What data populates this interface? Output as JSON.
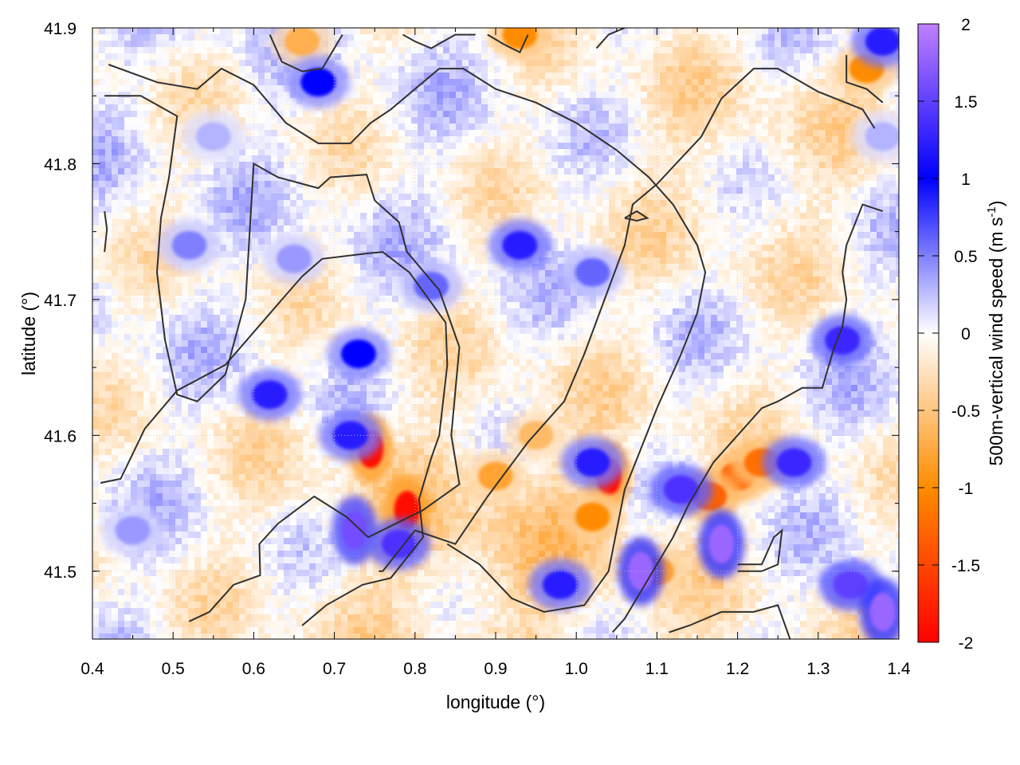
{
  "chart_data": {
    "type": "heatmap",
    "title": "",
    "xlabel": "longitude (°)",
    "ylabel": "latitude (°)",
    "colorbar_label": "500m-vertical wind speed (m s⁻¹)",
    "colorbar_label_parts": {
      "base": "500m-vertical wind speed (m s",
      "sup": "-1",
      "tail": ")"
    },
    "xlim": [
      0.4,
      1.4
    ],
    "ylim": [
      41.45,
      41.9
    ],
    "clim": [
      -2,
      2
    ],
    "x_ticks": [
      "0.4",
      "0.5",
      "0.6",
      "0.7",
      "0.8",
      "0.9",
      "1.0",
      "1.1",
      "1.2",
      "1.3",
      "1.4"
    ],
    "y_ticks": [
      "41.5",
      "41.6",
      "41.7",
      "41.8",
      "41.9"
    ],
    "colorbar_ticks": [
      "2",
      "1.5",
      "1",
      "0.5",
      "0",
      "-0.5",
      "-1",
      "-1.5",
      "-2"
    ],
    "colormap": [
      "#ff0000",
      "#ff8c00",
      "#ffffff",
      "#0000ff",
      "#c080ff"
    ],
    "grid": true,
    "features": [
      {
        "kind": "updraft",
        "lon": 0.745,
        "lat": 41.59,
        "value": -1.9
      },
      {
        "kind": "updraft",
        "lon": 0.79,
        "lat": 41.545,
        "value": -1.9
      },
      {
        "kind": "updraft",
        "lon": 1.04,
        "lat": 41.57,
        "value": -1.9
      },
      {
        "kind": "updraft",
        "lon": 1.2,
        "lat": 41.57,
        "value": -1.3
      },
      {
        "kind": "updraft",
        "lon": 1.165,
        "lat": 41.555,
        "value": -1.3
      },
      {
        "kind": "updraft",
        "lon": 1.23,
        "lat": 41.58,
        "value": -1.2
      },
      {
        "kind": "updraft",
        "lon": 1.02,
        "lat": 41.54,
        "value": -1.0
      },
      {
        "kind": "updraft",
        "lon": 0.9,
        "lat": 41.57,
        "value": -0.8
      },
      {
        "kind": "updraft",
        "lon": 0.95,
        "lat": 41.6,
        "value": -0.6
      },
      {
        "kind": "updraft",
        "lon": 0.93,
        "lat": 41.895,
        "value": -1.0
      },
      {
        "kind": "updraft",
        "lon": 0.66,
        "lat": 41.89,
        "value": -0.7
      },
      {
        "kind": "updraft",
        "lon": 1.36,
        "lat": 41.87,
        "value": -1.0
      },
      {
        "kind": "updraft",
        "lon": 1.1,
        "lat": 41.5,
        "value": -0.8
      },
      {
        "kind": "downdraft",
        "lon": 0.72,
        "lat": 41.6,
        "value": 1.2
      },
      {
        "kind": "downdraft",
        "lon": 0.725,
        "lat": 41.53,
        "value": 1.6
      },
      {
        "kind": "downdraft",
        "lon": 0.78,
        "lat": 41.52,
        "value": 1.4
      },
      {
        "kind": "downdraft",
        "lon": 0.73,
        "lat": 41.66,
        "value": 1.0
      },
      {
        "kind": "downdraft",
        "lon": 1.02,
        "lat": 41.58,
        "value": 1.2
      },
      {
        "kind": "downdraft",
        "lon": 1.08,
        "lat": 41.5,
        "value": 1.8
      },
      {
        "kind": "downdraft",
        "lon": 1.13,
        "lat": 41.56,
        "value": 1.4
      },
      {
        "kind": "downdraft",
        "lon": 1.18,
        "lat": 41.52,
        "value": 1.8
      },
      {
        "kind": "downdraft",
        "lon": 0.98,
        "lat": 41.49,
        "value": 1.2
      },
      {
        "kind": "downdraft",
        "lon": 0.52,
        "lat": 41.74,
        "value": 0.5
      },
      {
        "kind": "downdraft",
        "lon": 0.65,
        "lat": 41.73,
        "value": 0.4
      },
      {
        "kind": "downdraft",
        "lon": 0.93,
        "lat": 41.74,
        "value": 1.2
      },
      {
        "kind": "downdraft",
        "lon": 0.82,
        "lat": 41.71,
        "value": 0.6
      },
      {
        "kind": "downdraft",
        "lon": 1.02,
        "lat": 41.72,
        "value": 0.6
      },
      {
        "kind": "downdraft",
        "lon": 1.33,
        "lat": 41.67,
        "value": 1.3
      },
      {
        "kind": "downdraft",
        "lon": 1.27,
        "lat": 41.58,
        "value": 1.3
      },
      {
        "kind": "downdraft",
        "lon": 1.34,
        "lat": 41.49,
        "value": 1.5
      },
      {
        "kind": "downdraft",
        "lon": 1.38,
        "lat": 41.47,
        "value": 1.8
      },
      {
        "kind": "downdraft",
        "lon": 0.62,
        "lat": 41.63,
        "value": 1.2
      },
      {
        "kind": "downdraft",
        "lon": 0.68,
        "lat": 41.86,
        "value": 1.0
      },
      {
        "kind": "downdraft",
        "lon": 1.38,
        "lat": 41.89,
        "value": 1.2
      },
      {
        "kind": "downdraft",
        "lon": 0.45,
        "lat": 41.53,
        "value": 0.4
      },
      {
        "kind": "downdraft",
        "lon": 1.38,
        "lat": 41.82,
        "value": 0.3
      },
      {
        "kind": "downdraft",
        "lon": 0.55,
        "lat": 41.82,
        "value": 0.3
      }
    ],
    "contours": [
      {
        "name": "outer-west",
        "points": [
          [
            0.41,
            41.565
          ],
          [
            0.435,
            41.568
          ],
          [
            0.465,
            41.605
          ],
          [
            0.505,
            41.633
          ],
          [
            0.565,
            41.652
          ],
          [
            0.635,
            41.7
          ],
          [
            0.66,
            41.717
          ],
          [
            0.685,
            41.73
          ],
          [
            0.742,
            41.734
          ],
          [
            0.76,
            41.735
          ],
          [
            0.793,
            41.72
          ],
          [
            0.838,
            41.683
          ],
          [
            0.84,
            41.652
          ],
          [
            0.83,
            41.6
          ],
          [
            0.82,
            41.583
          ],
          [
            0.805,
            41.553
          ],
          [
            0.81,
            41.525
          ],
          [
            0.77,
            41.495
          ],
          [
            0.735,
            41.49
          ],
          [
            0.69,
            41.475
          ],
          [
            0.66,
            41.46
          ]
        ]
      },
      {
        "name": "inner-west",
        "points": [
          [
            0.52,
            41.463
          ],
          [
            0.545,
            41.47
          ],
          [
            0.575,
            41.49
          ],
          [
            0.608,
            41.497
          ],
          [
            0.607,
            41.52
          ],
          [
            0.63,
            41.535
          ],
          [
            0.675,
            41.555
          ],
          [
            0.715,
            41.54
          ],
          [
            0.742,
            41.525
          ],
          [
            0.81,
            41.545
          ],
          [
            0.855,
            41.564
          ],
          [
            0.845,
            41.6
          ],
          [
            0.855,
            41.665
          ],
          [
            0.83,
            41.707
          ],
          [
            0.79,
            41.735
          ],
          [
            0.78,
            41.757
          ],
          [
            0.75,
            41.773
          ],
          [
            0.74,
            41.792
          ],
          [
            0.695,
            41.79
          ],
          [
            0.68,
            41.782
          ],
          [
            0.63,
            41.79
          ],
          [
            0.6,
            41.8
          ],
          [
            0.59,
            41.7
          ],
          [
            0.565,
            41.645
          ],
          [
            0.53,
            41.625
          ],
          [
            0.505,
            41.63
          ],
          [
            0.49,
            41.67
          ],
          [
            0.48,
            41.72
          ],
          [
            0.485,
            41.76
          ],
          [
            0.495,
            41.79
          ],
          [
            0.505,
            41.835
          ],
          [
            0.46,
            41.85
          ],
          [
            0.415,
            41.85
          ]
        ]
      },
      {
        "name": "big-loop",
        "points": [
          [
            0.755,
            41.5
          ],
          [
            0.76,
            41.5
          ],
          [
            0.8,
            41.53
          ],
          [
            0.85,
            41.52
          ],
          [
            0.89,
            41.555
          ],
          [
            0.94,
            41.595
          ],
          [
            0.985,
            41.625
          ],
          [
            1.01,
            41.66
          ],
          [
            1.035,
            41.7
          ],
          [
            1.06,
            41.74
          ],
          [
            1.07,
            41.77
          ],
          [
            1.1,
            41.785
          ],
          [
            1.155,
            41.82
          ],
          [
            1.18,
            41.848
          ],
          [
            1.22,
            41.87
          ],
          [
            1.25,
            41.87
          ],
          [
            1.3,
            41.853
          ],
          [
            1.355,
            41.84
          ],
          [
            1.37,
            41.826
          ]
        ]
      },
      {
        "name": "north-west-1",
        "points": [
          [
            0.42,
            41.873
          ],
          [
            0.48,
            41.86
          ],
          [
            0.53,
            41.855
          ],
          [
            0.56,
            41.87
          ],
          [
            0.6,
            41.858
          ],
          [
            0.64,
            41.83
          ],
          [
            0.68,
            41.815
          ],
          [
            0.72,
            41.815
          ],
          [
            0.745,
            41.83
          ],
          [
            0.77,
            41.84
          ],
          [
            0.8,
            41.855
          ],
          [
            0.83,
            41.87
          ],
          [
            0.86,
            41.87
          ],
          [
            0.9,
            41.855
          ],
          [
            0.95,
            41.845
          ],
          [
            1.0,
            41.83
          ],
          [
            1.05,
            41.81
          ],
          [
            1.09,
            41.79
          ],
          [
            1.12,
            41.77
          ],
          [
            1.15,
            41.74
          ],
          [
            1.16,
            41.72
          ],
          [
            1.15,
            41.69
          ],
          [
            1.13,
            41.66
          ],
          [
            1.1,
            41.62
          ],
          [
            1.08,
            41.59
          ],
          [
            1.06,
            41.56
          ],
          [
            1.05,
            41.53
          ],
          [
            1.04,
            41.5
          ],
          [
            1.01,
            41.475
          ],
          [
            0.96,
            41.47
          ],
          [
            0.92,
            41.48
          ],
          [
            0.88,
            41.505
          ],
          [
            0.84,
            41.52
          ]
        ]
      },
      {
        "name": "north-wiggle",
        "points": [
          [
            0.62,
            41.895
          ],
          [
            0.635,
            41.875
          ],
          [
            0.66,
            41.868
          ],
          [
            0.685,
            41.87
          ],
          [
            0.71,
            41.895
          ]
        ]
      },
      {
        "name": "north-center",
        "points": [
          [
            0.785,
            41.895
          ],
          [
            0.8,
            41.89
          ],
          [
            0.82,
            41.885
          ],
          [
            0.85,
            41.895
          ],
          [
            0.875,
            41.895
          ]
        ]
      },
      {
        "name": "north-center-2",
        "points": [
          [
            0.89,
            41.895
          ],
          [
            0.91,
            41.888
          ],
          [
            0.93,
            41.882
          ],
          [
            0.94,
            41.895
          ]
        ]
      },
      {
        "name": "north-east-hook",
        "points": [
          [
            1.025,
            41.885
          ],
          [
            1.04,
            41.895
          ],
          [
            1.06,
            41.9
          ]
        ]
      },
      {
        "name": "east-hook",
        "points": [
          [
            1.335,
            41.88
          ],
          [
            1.335,
            41.86
          ],
          [
            1.36,
            41.855
          ],
          [
            1.38,
            41.845
          ]
        ]
      },
      {
        "name": "small-diamond",
        "points": [
          [
            1.06,
            41.76
          ],
          [
            1.075,
            41.765
          ],
          [
            1.088,
            41.76
          ],
          [
            1.075,
            41.758
          ],
          [
            1.06,
            41.76
          ]
        ]
      },
      {
        "name": "east-long",
        "points": [
          [
            1.38,
            41.765
          ],
          [
            1.355,
            41.77
          ],
          [
            1.335,
            41.74
          ],
          [
            1.33,
            41.72
          ],
          [
            1.335,
            41.7
          ],
          [
            1.33,
            41.68
          ],
          [
            1.32,
            41.665
          ],
          [
            1.31,
            41.645
          ],
          [
            1.305,
            41.635
          ],
          [
            1.28,
            41.635
          ],
          [
            1.25,
            41.625
          ],
          [
            1.23,
            41.62
          ],
          [
            1.2,
            41.6
          ],
          [
            1.17,
            41.58
          ],
          [
            1.14,
            41.55
          ],
          [
            1.12,
            41.525
          ],
          [
            1.1,
            41.505
          ],
          [
            1.08,
            41.485
          ],
          [
            1.06,
            41.465
          ],
          [
            1.045,
            41.455
          ]
        ]
      },
      {
        "name": "south-east",
        "points": [
          [
            1.115,
            41.455
          ],
          [
            1.14,
            41.46
          ],
          [
            1.18,
            41.47
          ],
          [
            1.22,
            41.47
          ],
          [
            1.25,
            41.475
          ],
          [
            1.265,
            41.45
          ]
        ]
      },
      {
        "name": "south-east-tail",
        "points": [
          [
            1.2,
            41.5
          ],
          [
            1.23,
            41.5
          ],
          [
            1.25,
            41.505
          ],
          [
            1.255,
            41.53
          ],
          [
            1.245,
            41.525
          ],
          [
            1.23,
            41.505
          ],
          [
            1.2,
            41.505
          ]
        ]
      },
      {
        "name": "west-short",
        "points": [
          [
            0.415,
            41.765
          ],
          [
            0.418,
            41.752
          ],
          [
            0.415,
            41.735
          ]
        ]
      }
    ]
  }
}
